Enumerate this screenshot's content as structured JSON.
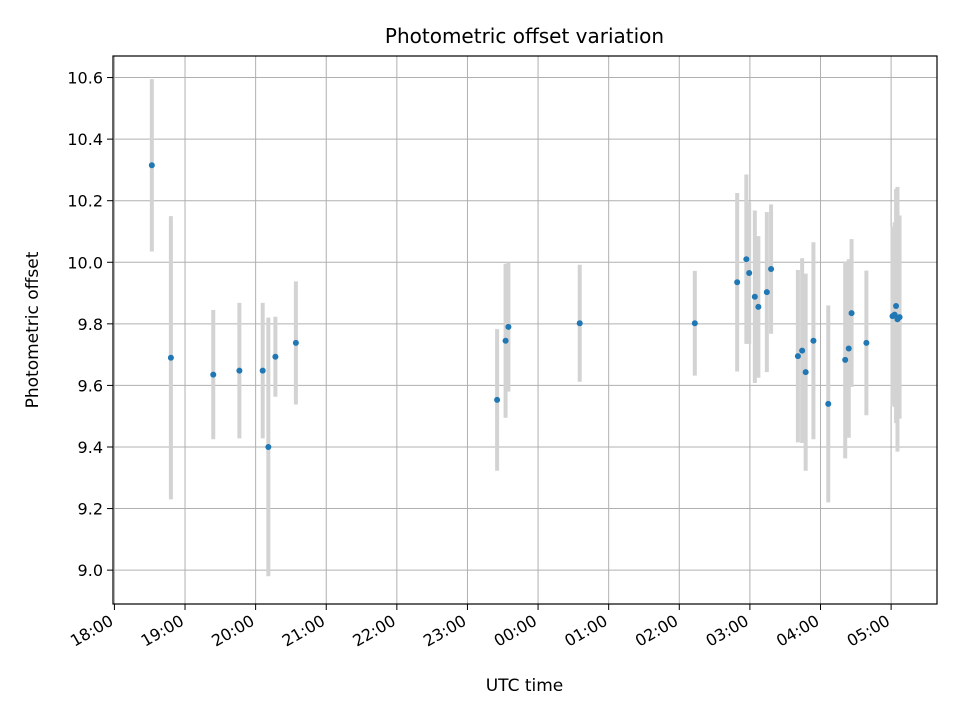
{
  "chart_data": {
    "type": "scatter",
    "title": "Photometric offset variation",
    "xlabel": "UTC time",
    "ylabel": "Photometric offset",
    "x_unit": "hours (UTC, continuing past midnight)",
    "xlim": [
      17.98,
      29.65
    ],
    "ylim": [
      8.89,
      10.67
    ],
    "x_ticks": [
      18,
      19,
      20,
      21,
      22,
      23,
      24,
      25,
      26,
      27,
      28,
      29
    ],
    "x_tick_labels": [
      "18:00",
      "19:00",
      "20:00",
      "21:00",
      "22:00",
      "23:00",
      "00:00",
      "01:00",
      "02:00",
      "03:00",
      "04:00",
      "05:00"
    ],
    "y_ticks": [
      9.0,
      9.2,
      9.4,
      9.6,
      9.8,
      10.0,
      10.2,
      10.4,
      10.6
    ],
    "y_tick_labels": [
      "9.0",
      "9.2",
      "9.4",
      "9.6",
      "9.8",
      "10.0",
      "10.2",
      "10.4",
      "10.6"
    ],
    "grid": true,
    "marker_color": "#1f77b4",
    "errorbar_color": "#d3d3d3",
    "points": [
      {
        "x": 18.53,
        "y": 10.315,
        "err": 0.28
      },
      {
        "x": 18.8,
        "y": 9.69,
        "err": 0.46
      },
      {
        "x": 19.4,
        "y": 9.635,
        "err": 0.21
      },
      {
        "x": 19.77,
        "y": 9.648,
        "err": 0.22
      },
      {
        "x": 20.1,
        "y": 9.648,
        "err": 0.22
      },
      {
        "x": 20.18,
        "y": 9.4,
        "err": 0.42
      },
      {
        "x": 20.28,
        "y": 9.693,
        "err": 0.13
      },
      {
        "x": 20.57,
        "y": 9.738,
        "err": 0.2
      },
      {
        "x": 23.42,
        "y": 9.553,
        "err": 0.23
      },
      {
        "x": 23.54,
        "y": 9.745,
        "err": 0.25
      },
      {
        "x": 23.58,
        "y": 9.79,
        "err": 0.21
      },
      {
        "x": 24.59,
        "y": 9.802,
        "err": 0.19
      },
      {
        "x": 26.22,
        "y": 9.802,
        "err": 0.17
      },
      {
        "x": 26.82,
        "y": 9.935,
        "err": 0.29
      },
      {
        "x": 26.95,
        "y": 10.01,
        "err": 0.275
      },
      {
        "x": 26.99,
        "y": 9.965,
        "err": 0.23
      },
      {
        "x": 27.07,
        "y": 9.888,
        "err": 0.28
      },
      {
        "x": 27.12,
        "y": 9.855,
        "err": 0.23
      },
      {
        "x": 27.24,
        "y": 9.903,
        "err": 0.26
      },
      {
        "x": 27.3,
        "y": 9.978,
        "err": 0.21
      },
      {
        "x": 27.68,
        "y": 9.695,
        "err": 0.28
      },
      {
        "x": 27.74,
        "y": 9.713,
        "err": 0.3
      },
      {
        "x": 27.79,
        "y": 9.643,
        "err": 0.32
      },
      {
        "x": 27.9,
        "y": 9.745,
        "err": 0.32
      },
      {
        "x": 28.11,
        "y": 9.54,
        "err": 0.32
      },
      {
        "x": 28.35,
        "y": 9.683,
        "err": 0.32
      },
      {
        "x": 28.4,
        "y": 9.72,
        "err": 0.29
      },
      {
        "x": 28.44,
        "y": 9.835,
        "err": 0.24
      },
      {
        "x": 28.65,
        "y": 9.738,
        "err": 0.235
      },
      {
        "x": 29.02,
        "y": 9.825,
        "err": 0.29
      },
      {
        "x": 29.05,
        "y": 9.83,
        "err": 0.3
      },
      {
        "x": 29.07,
        "y": 9.858,
        "err": 0.38
      },
      {
        "x": 29.09,
        "y": 9.815,
        "err": 0.43
      },
      {
        "x": 29.12,
        "y": 9.822,
        "err": 0.33
      }
    ]
  }
}
